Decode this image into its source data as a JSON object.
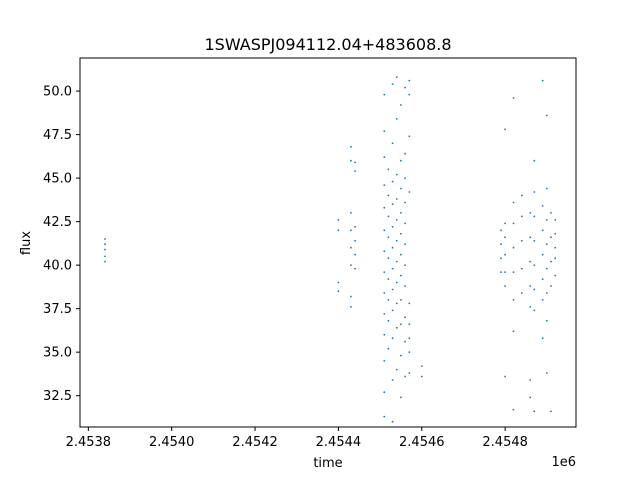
{
  "chart_data": {
    "type": "scatter",
    "title": "1SWASPJ094112.04+483608.8",
    "xlabel": "time",
    "ylabel": "flux",
    "x_offset_label": "1e6",
    "xlim": [
      2.45378,
      2.45497
    ],
    "ylim": [
      30.7,
      51.9
    ],
    "x_ticks": [
      2.4538,
      2.454,
      2.4542,
      2.4544,
      2.4546,
      2.4548
    ],
    "x_tick_labels": [
      "2.4538",
      "2.4540",
      "2.4542",
      "2.4544",
      "2.4546",
      "2.4548"
    ],
    "y_ticks": [
      32.5,
      35.0,
      37.5,
      40.0,
      42.5,
      45.0,
      47.5,
      50.0
    ],
    "y_tick_labels": [
      "32.5",
      "35.0",
      "37.5",
      "40.0",
      "42.5",
      "45.0",
      "47.5",
      "50.0"
    ],
    "grid": false,
    "legend": "none",
    "marker_color": "#1f77b4",
    "series": [
      {
        "values": [
          [
            2.45384,
            40.2
          ],
          [
            2.45384,
            40.5
          ],
          [
            2.45384,
            40.9
          ],
          [
            2.45384,
            41.2
          ],
          [
            2.45384,
            41.5
          ],
          [
            2.4544,
            38.5
          ],
          [
            2.4544,
            39.0
          ],
          [
            2.4544,
            42.0
          ],
          [
            2.4544,
            42.6
          ],
          [
            2.45443,
            37.6
          ],
          [
            2.45443,
            38.2
          ],
          [
            2.45443,
            40.0
          ],
          [
            2.45443,
            41.0
          ],
          [
            2.45443,
            42.0
          ],
          [
            2.45443,
            43.0
          ],
          [
            2.45443,
            46.0
          ],
          [
            2.45443,
            46.8
          ],
          [
            2.45444,
            39.8
          ],
          [
            2.45444,
            40.6
          ],
          [
            2.45444,
            41.4
          ],
          [
            2.45444,
            42.2
          ],
          [
            2.45444,
            45.4
          ],
          [
            2.45444,
            45.9
          ],
          [
            2.45451,
            31.3
          ],
          [
            2.45451,
            32.7
          ],
          [
            2.45451,
            34.5
          ],
          [
            2.45451,
            36.0
          ],
          [
            2.45451,
            37.2
          ],
          [
            2.45451,
            38.4
          ],
          [
            2.45451,
            39.6
          ],
          [
            2.45451,
            40.8
          ],
          [
            2.45451,
            42.0
          ],
          [
            2.45451,
            43.3
          ],
          [
            2.45451,
            44.6
          ],
          [
            2.45451,
            46.2
          ],
          [
            2.45451,
            47.7
          ],
          [
            2.45451,
            49.8
          ],
          [
            2.45452,
            35.2
          ],
          [
            2.45452,
            36.8
          ],
          [
            2.45452,
            38.0
          ],
          [
            2.45452,
            39.2
          ],
          [
            2.45452,
            40.4
          ],
          [
            2.45452,
            41.6
          ],
          [
            2.45452,
            42.8
          ],
          [
            2.45452,
            44.0
          ],
          [
            2.45452,
            45.5
          ],
          [
            2.45453,
            31.0
          ],
          [
            2.45453,
            33.4
          ],
          [
            2.45453,
            35.8
          ],
          [
            2.45453,
            37.4
          ],
          [
            2.45453,
            38.6
          ],
          [
            2.45453,
            39.8
          ],
          [
            2.45453,
            41.0
          ],
          [
            2.45453,
            42.2
          ],
          [
            2.45453,
            43.5
          ],
          [
            2.45453,
            44.8
          ],
          [
            2.45453,
            47.0
          ],
          [
            2.45453,
            50.4
          ],
          [
            2.45454,
            34.0
          ],
          [
            2.45454,
            36.4
          ],
          [
            2.45454,
            37.8
          ],
          [
            2.45454,
            39.0
          ],
          [
            2.45454,
            40.2
          ],
          [
            2.45454,
            41.4
          ],
          [
            2.45454,
            42.6
          ],
          [
            2.45454,
            43.8
          ],
          [
            2.45454,
            45.2
          ],
          [
            2.45454,
            48.4
          ],
          [
            2.45454,
            50.8
          ],
          [
            2.45455,
            32.4
          ],
          [
            2.45455,
            34.8
          ],
          [
            2.45455,
            36.6
          ],
          [
            2.45455,
            38.0
          ],
          [
            2.45455,
            39.4
          ],
          [
            2.45455,
            40.6
          ],
          [
            2.45455,
            41.8
          ],
          [
            2.45455,
            43.0
          ],
          [
            2.45455,
            44.4
          ],
          [
            2.45455,
            46.0
          ],
          [
            2.45455,
            49.2
          ],
          [
            2.45456,
            33.6
          ],
          [
            2.45456,
            35.6
          ],
          [
            2.45456,
            37.0
          ],
          [
            2.45456,
            38.8
          ],
          [
            2.45456,
            40.0
          ],
          [
            2.45456,
            41.2
          ],
          [
            2.45456,
            42.4
          ],
          [
            2.45456,
            43.6
          ],
          [
            2.45456,
            45.0
          ],
          [
            2.45456,
            46.4
          ],
          [
            2.45456,
            50.2
          ],
          [
            2.45457,
            33.8
          ],
          [
            2.45457,
            35.0
          ],
          [
            2.45457,
            35.8
          ],
          [
            2.45457,
            36.6
          ],
          [
            2.45457,
            37.8
          ],
          [
            2.45457,
            44.2
          ],
          [
            2.45457,
            47.4
          ],
          [
            2.45457,
            49.8
          ],
          [
            2.45457,
            50.6
          ],
          [
            2.4546,
            33.6
          ],
          [
            2.4546,
            34.2
          ],
          [
            2.45479,
            39.6
          ],
          [
            2.45479,
            40.4
          ],
          [
            2.45479,
            41.2
          ],
          [
            2.45479,
            42.0
          ],
          [
            2.4548,
            38.8
          ],
          [
            2.4548,
            39.6
          ],
          [
            2.4548,
            40.6
          ],
          [
            2.4548,
            41.6
          ],
          [
            2.4548,
            42.4
          ],
          [
            2.4548,
            33.6
          ],
          [
            2.4548,
            47.8
          ],
          [
            2.45482,
            36.2
          ],
          [
            2.45482,
            38.0
          ],
          [
            2.45482,
            39.6
          ],
          [
            2.45482,
            41.0
          ],
          [
            2.45482,
            42.4
          ],
          [
            2.45482,
            43.6
          ],
          [
            2.45482,
            49.6
          ],
          [
            2.45482,
            31.7
          ],
          [
            2.45484,
            38.4
          ],
          [
            2.45484,
            39.8
          ],
          [
            2.45484,
            41.4
          ],
          [
            2.45484,
            42.8
          ],
          [
            2.45484,
            44.0
          ],
          [
            2.45486,
            37.6
          ],
          [
            2.45486,
            38.8
          ],
          [
            2.45486,
            40.2
          ],
          [
            2.45486,
            41.6
          ],
          [
            2.45486,
            43.0
          ],
          [
            2.45486,
            33.4
          ],
          [
            2.45486,
            32.4
          ],
          [
            2.45487,
            37.4
          ],
          [
            2.45487,
            38.6
          ],
          [
            2.45487,
            40.0
          ],
          [
            2.45487,
            41.4
          ],
          [
            2.45487,
            42.8
          ],
          [
            2.45487,
            44.2
          ],
          [
            2.45487,
            46.0
          ],
          [
            2.45487,
            31.6
          ],
          [
            2.45489,
            38.0
          ],
          [
            2.45489,
            39.2
          ],
          [
            2.45489,
            40.6
          ],
          [
            2.45489,
            42.0
          ],
          [
            2.45489,
            43.4
          ],
          [
            2.45489,
            50.6
          ],
          [
            2.45489,
            35.8
          ],
          [
            2.4549,
            36.8
          ],
          [
            2.4549,
            38.4
          ],
          [
            2.4549,
            39.8
          ],
          [
            2.4549,
            41.2
          ],
          [
            2.4549,
            42.6
          ],
          [
            2.4549,
            44.4
          ],
          [
            2.4549,
            48.6
          ],
          [
            2.4549,
            33.8
          ],
          [
            2.45491,
            38.8
          ],
          [
            2.45491,
            40.2
          ],
          [
            2.45491,
            41.6
          ],
          [
            2.45491,
            43.0
          ],
          [
            2.45491,
            31.6
          ],
          [
            2.45492,
            39.4
          ],
          [
            2.45492,
            40.4
          ],
          [
            2.45492,
            41.0
          ],
          [
            2.45492,
            41.8
          ],
          [
            2.45492,
            42.6
          ]
        ]
      }
    ]
  }
}
